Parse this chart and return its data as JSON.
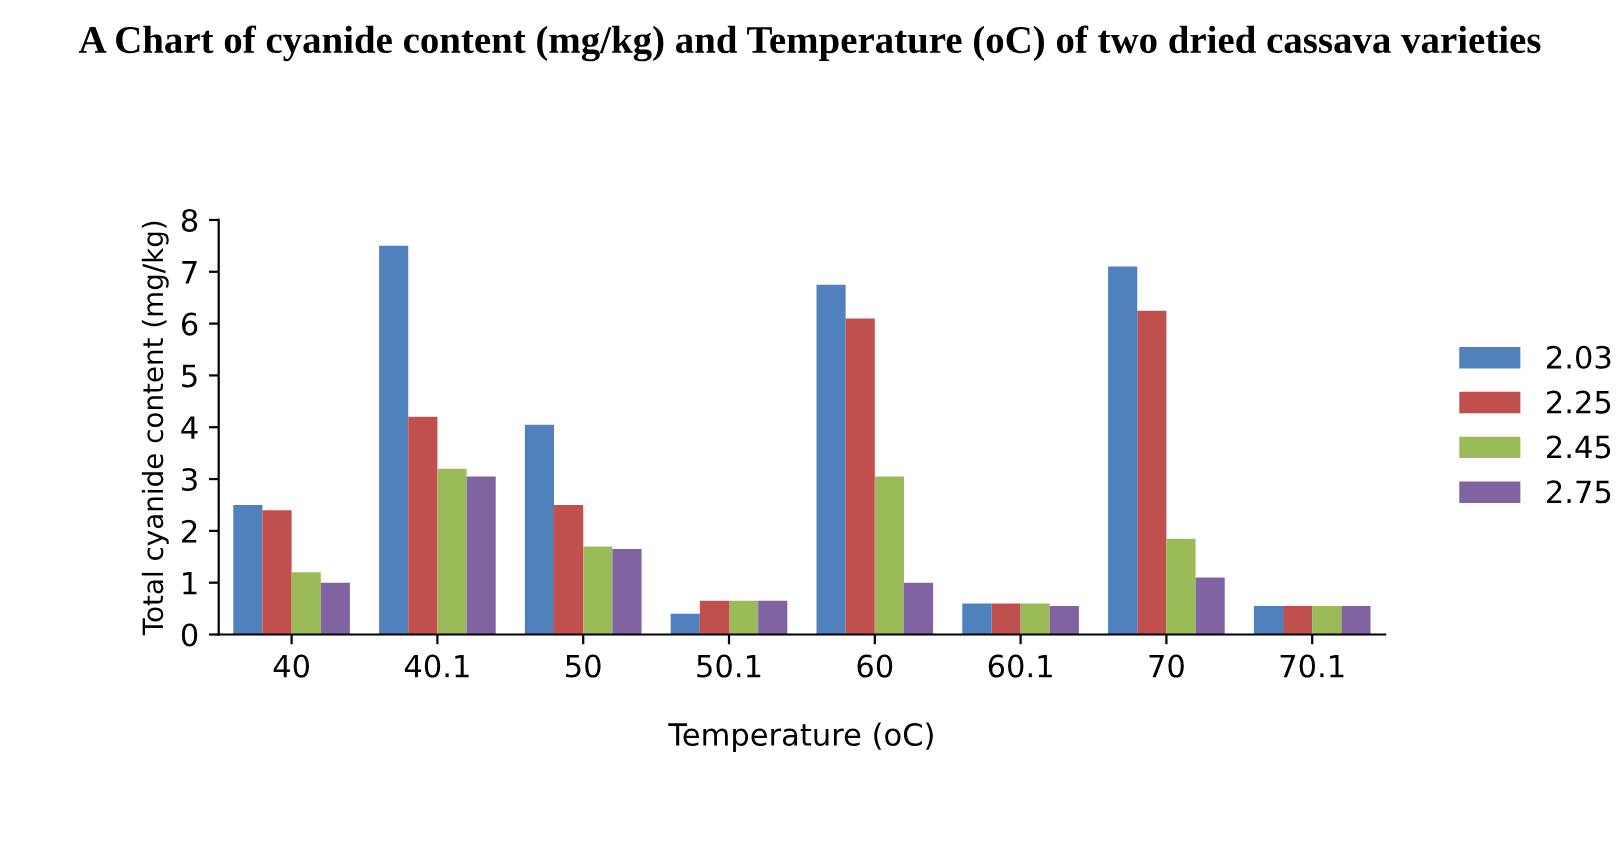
{
  "chart_data": {
    "type": "bar",
    "title": "A Chart of cyanide content (mg/kg) and Temperature (oC) of two dried cassava varieties",
    "xlabel": "Temperature (oC)",
    "ylabel": "Total cyanide content (mg/kg)",
    "categories": [
      "40",
      "40.1",
      "50",
      "50.1",
      "60",
      "60.1",
      "70",
      "70.1"
    ],
    "series": [
      {
        "name": "2.03",
        "color": "#4f81bd",
        "values": [
          2.5,
          7.5,
          4.05,
          0.4,
          6.75,
          0.6,
          7.1,
          0.55
        ]
      },
      {
        "name": "2.25",
        "color": "#c0504d",
        "values": [
          2.4,
          4.2,
          2.5,
          0.65,
          6.1,
          0.6,
          6.25,
          0.55
        ]
      },
      {
        "name": "2.45",
        "color": "#9bbb59",
        "values": [
          1.2,
          3.2,
          1.7,
          0.65,
          3.05,
          0.6,
          1.85,
          0.55
        ]
      },
      {
        "name": "2.75",
        "color": "#8064a2",
        "values": [
          1.0,
          3.05,
          1.65,
          0.65,
          1.0,
          0.55,
          1.1,
          0.55
        ]
      }
    ],
    "ylim": [
      0,
      8
    ],
    "yticks": [
      0,
      1,
      2,
      3,
      4,
      5,
      6,
      7,
      8
    ],
    "grid": false,
    "legend": "right"
  }
}
